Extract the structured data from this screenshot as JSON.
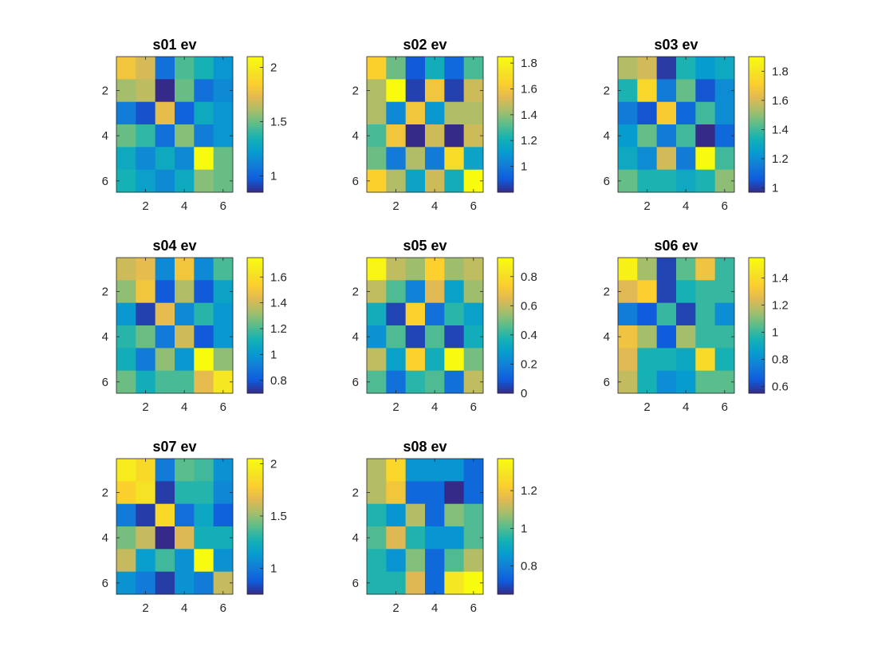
{
  "chart_data": [
    {
      "type": "heatmap",
      "title": "s01 ev",
      "x": [
        1,
        2,
        3,
        4,
        5,
        6
      ],
      "y": [
        1,
        2,
        3,
        4,
        5,
        6
      ],
      "xticks": [
        "2",
        "4",
        "6"
      ],
      "yticks": [
        "2",
        "4",
        "6"
      ],
      "clim": [
        0.85,
        2.1
      ],
      "colorbar_ticks": [
        "1",
        "1.5",
        "2"
      ],
      "colorbar_tick_values": [
        1,
        1.5,
        2
      ],
      "values": [
        [
          1.8,
          1.7,
          1.05,
          1.45,
          1.35,
          1.2
        ],
        [
          1.6,
          1.65,
          0.85,
          1.5,
          1.05,
          1.15
        ],
        [
          1.1,
          0.95,
          1.75,
          1.0,
          1.3,
          1.2
        ],
        [
          1.5,
          1.4,
          1.05,
          1.55,
          1.1,
          1.2
        ],
        [
          1.3,
          1.15,
          1.3,
          1.15,
          2.1,
          1.5
        ],
        [
          1.35,
          1.25,
          1.15,
          1.3,
          1.55,
          1.5
        ]
      ]
    },
    {
      "type": "heatmap",
      "title": "s02 ev",
      "x": [
        1,
        2,
        3,
        4,
        5,
        6
      ],
      "y": [
        1,
        2,
        3,
        4,
        5,
        6
      ],
      "xticks": [
        "2",
        "4",
        "6"
      ],
      "yticks": [
        "2",
        "4",
        "6"
      ],
      "clim": [
        0.8,
        1.85
      ],
      "colorbar_ticks": [
        "1",
        "1.2",
        "1.4",
        "1.6",
        "1.8"
      ],
      "colorbar_tick_values": [
        1,
        1.2,
        1.4,
        1.6,
        1.8
      ],
      "values": [
        [
          1.65,
          1.35,
          0.9,
          1.2,
          0.95,
          1.3
        ],
        [
          1.45,
          1.85,
          0.85,
          1.6,
          0.85,
          1.5
        ],
        [
          1.45,
          1.05,
          1.6,
          1.1,
          1.45,
          1.45
        ],
        [
          1.3,
          1.6,
          0.8,
          1.5,
          0.8,
          1.5
        ],
        [
          1.35,
          1.0,
          1.45,
          1.0,
          1.7,
          1.15
        ],
        [
          1.65,
          1.45,
          1.15,
          1.5,
          1.2,
          1.85
        ]
      ]
    },
    {
      "type": "heatmap",
      "title": "s03 ev",
      "x": [
        1,
        2,
        3,
        4,
        5,
        6
      ],
      "y": [
        1,
        2,
        3,
        4,
        5,
        6
      ],
      "xticks": [
        "2",
        "4",
        "6"
      ],
      "yticks": [
        "2",
        "4",
        "6"
      ],
      "clim": [
        0.97,
        1.9
      ],
      "colorbar_ticks": [
        "1",
        "1.2",
        "1.4",
        "1.6",
        "1.8"
      ],
      "colorbar_tick_values": [
        1,
        1.2,
        1.4,
        1.6,
        1.8
      ],
      "values": [
        [
          1.55,
          1.6,
          1.0,
          1.35,
          1.25,
          1.3
        ],
        [
          1.35,
          1.75,
          1.15,
          1.45,
          1.05,
          1.2
        ],
        [
          1.15,
          1.05,
          1.7,
          1.1,
          1.4,
          1.2
        ],
        [
          1.25,
          1.45,
          1.15,
          1.4,
          0.97,
          1.1
        ],
        [
          1.3,
          1.2,
          1.6,
          1.15,
          1.9,
          1.4
        ],
        [
          1.45,
          1.35,
          1.35,
          1.3,
          1.35,
          1.5
        ]
      ]
    },
    {
      "type": "heatmap",
      "title": "s04 ev",
      "x": [
        1,
        2,
        3,
        4,
        5,
        6
      ],
      "y": [
        1,
        2,
        3,
        4,
        5,
        6
      ],
      "xticks": [
        "2",
        "4",
        "6"
      ],
      "yticks": [
        "2",
        "4",
        "6"
      ],
      "clim": [
        0.7,
        1.75
      ],
      "colorbar_ticks": [
        "0.8",
        "1",
        "1.2",
        "1.4",
        "1.6"
      ],
      "colorbar_tick_values": [
        0.8,
        1,
        1.2,
        1.4,
        1.6
      ],
      "values": [
        [
          1.4,
          1.45,
          0.95,
          1.5,
          0.95,
          1.2
        ],
        [
          1.3,
          1.5,
          0.8,
          1.35,
          0.8,
          1.05
        ],
        [
          1.0,
          0.75,
          1.45,
          0.95,
          1.15,
          1.0
        ],
        [
          1.15,
          1.25,
          0.9,
          1.4,
          0.8,
          1.0
        ],
        [
          1.1,
          0.9,
          1.3,
          1.0,
          1.75,
          1.3
        ],
        [
          1.25,
          1.1,
          1.2,
          1.2,
          1.45,
          1.65
        ]
      ]
    },
    {
      "type": "heatmap",
      "title": "s05 ev",
      "x": [
        1,
        2,
        3,
        4,
        5,
        6
      ],
      "y": [
        1,
        2,
        3,
        4,
        5,
        6
      ],
      "xticks": [
        "2",
        "4",
        "6"
      ],
      "yticks": [
        "2",
        "4",
        "6"
      ],
      "clim": [
        0.0,
        0.93
      ],
      "colorbar_ticks": [
        "0",
        "0.2",
        "0.4",
        "0.6",
        "0.8"
      ],
      "colorbar_tick_values": [
        0,
        0.2,
        0.4,
        0.6,
        0.8
      ],
      "values": [
        [
          0.9,
          0.6,
          0.55,
          0.75,
          0.55,
          0.6
        ],
        [
          0.6,
          0.45,
          0.2,
          0.65,
          0.3,
          0.55
        ],
        [
          0.35,
          0.05,
          0.75,
          0.15,
          0.4,
          0.3
        ],
        [
          0.25,
          0.45,
          0.05,
          0.45,
          0.05,
          0.35
        ],
        [
          0.6,
          0.3,
          0.75,
          0.35,
          0.93,
          0.5
        ],
        [
          0.45,
          0.15,
          0.4,
          0.45,
          0.15,
          0.6
        ]
      ]
    },
    {
      "type": "heatmap",
      "title": "s06 ev",
      "x": [
        1,
        2,
        3,
        4,
        5,
        6
      ],
      "y": [
        1,
        2,
        3,
        4,
        5,
        6
      ],
      "xticks": [
        "2",
        "4",
        "6"
      ],
      "yticks": [
        "2",
        "4",
        "6"
      ],
      "clim": [
        0.55,
        1.55
      ],
      "colorbar_ticks": [
        "0.6",
        "0.8",
        "1",
        "1.2",
        "1.4"
      ],
      "colorbar_tick_values": [
        0.6,
        0.8,
        1,
        1.2,
        1.4
      ],
      "values": [
        [
          1.5,
          1.15,
          0.6,
          1.05,
          1.3,
          1.0
        ],
        [
          1.25,
          1.35,
          0.6,
          0.95,
          1.0,
          1.0
        ],
        [
          0.75,
          0.65,
          1.0,
          0.6,
          1.0,
          0.8
        ],
        [
          1.3,
          1.15,
          0.65,
          1.15,
          1.0,
          1.0
        ],
        [
          1.25,
          0.95,
          0.95,
          0.9,
          1.4,
          0.95
        ],
        [
          1.2,
          0.95,
          0.8,
          0.85,
          1.05,
          1.05
        ]
      ]
    },
    {
      "type": "heatmap",
      "title": "s07 ev",
      "x": [
        1,
        2,
        3,
        4,
        5,
        6
      ],
      "y": [
        1,
        2,
        3,
        4,
        5,
        6
      ],
      "xticks": [
        "2",
        "4",
        "6"
      ],
      "yticks": [
        "2",
        "4",
        "6"
      ],
      "clim": [
        0.75,
        2.05
      ],
      "colorbar_ticks": [
        "1",
        "1.5",
        "2"
      ],
      "colorbar_tick_values": [
        1,
        1.5,
        2
      ],
      "values": [
        [
          1.95,
          1.85,
          1.0,
          1.4,
          1.35,
          1.1
        ],
        [
          1.8,
          1.9,
          0.8,
          1.3,
          1.3,
          1.05
        ],
        [
          1.0,
          0.8,
          1.85,
          0.95,
          1.2,
          0.9
        ],
        [
          1.45,
          1.6,
          0.75,
          1.65,
          1.25,
          1.25
        ],
        [
          1.6,
          1.15,
          1.35,
          1.1,
          2.05,
          1.1
        ],
        [
          1.1,
          1.0,
          0.8,
          1.1,
          1.0,
          1.6
        ]
      ]
    },
    {
      "type": "heatmap",
      "title": "s08 ev",
      "x": [
        1,
        2,
        3,
        4,
        5,
        6
      ],
      "y": [
        1,
        2,
        3,
        4,
        5,
        6
      ],
      "xticks": [
        "2",
        "4",
        "6"
      ],
      "yticks": [
        "2",
        "4",
        "6"
      ],
      "clim": [
        0.65,
        1.37
      ],
      "colorbar_ticks": [
        "0.8",
        "1",
        "1.2"
      ],
      "colorbar_tick_values": [
        0.8,
        1,
        1.2
      ],
      "values": [
        [
          1.1,
          1.25,
          0.85,
          0.85,
          0.85,
          0.75
        ],
        [
          1.1,
          1.2,
          0.75,
          0.75,
          0.65,
          0.75
        ],
        [
          0.95,
          0.85,
          1.1,
          0.75,
          1.05,
          1.0
        ],
        [
          1.0,
          1.15,
          0.95,
          0.85,
          0.85,
          1.0
        ],
        [
          0.95,
          0.85,
          1.05,
          0.75,
          1.0,
          1.1
        ],
        [
          0.95,
          0.95,
          1.15,
          0.75,
          1.3,
          1.37
        ]
      ]
    }
  ]
}
